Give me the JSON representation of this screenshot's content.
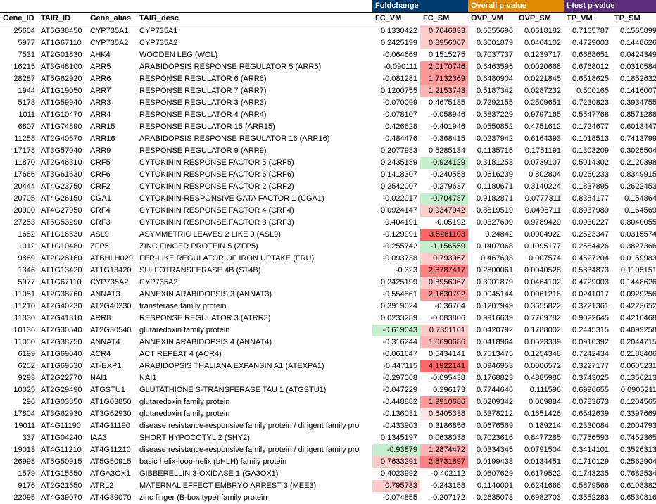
{
  "group_headers": {
    "fc": {
      "label": "Foldchange",
      "bg": "#003b6f"
    },
    "ovp": {
      "label": "Overall p-value",
      "bg": "#e08a00"
    },
    "tp": {
      "label": "t-test p-value",
      "bg": "#5a2d7a"
    }
  },
  "columns": {
    "gene_id": "Gene_ID",
    "tair_id": "TAIR_ID",
    "gene_alias": "Gene_alias",
    "tair_desc": "TAIR_desc",
    "fc_vm": "FC_VM",
    "fc_sm": "FC_SM",
    "ovp_vm": "OVP_VM",
    "ovp_sm": "OVP_SM",
    "tp_vm": "TP_VM",
    "tp_sm": "TP_SM"
  },
  "rows": [
    {
      "gene_id": "25604",
      "tair_id": "AT5G38450",
      "alias": "CYP735A1",
      "desc": "CYP735A1",
      "fc_vm": "0.1330422",
      "fc_sm": "0.7646833",
      "fc_sm_hl": "hl-red2",
      "ovp_vm": "0.6555696",
      "ovp_sm": "0.0618182",
      "tp_vm": "0.7165787",
      "tp_sm": "0.1565899"
    },
    {
      "gene_id": "5977",
      "tair_id": "AT1G67110",
      "alias": "CYP735A2",
      "desc": "CYP735A2",
      "fc_vm": "0.2425199",
      "fc_sm": "0.8956067",
      "fc_sm_hl": "hl-red2",
      "ovp_vm": "0.3001879",
      "ovp_sm": "0.0464102",
      "tp_vm": "0.4729003",
      "tp_sm": "0.1448626"
    },
    {
      "gene_id": "7531",
      "tair_id": "AT2G01830",
      "alias": "AHK4",
      "desc": "WOODEN LEG (WOL)",
      "fc_vm": "-0.064669",
      "fc_sm": "0.1515275",
      "ovp_vm": "0.7037737",
      "ovp_sm": "0.1239717",
      "tp_vm": "0.6688651",
      "tp_sm": "0.0424349"
    },
    {
      "gene_id": "16215",
      "tair_id": "AT3G48100",
      "alias": "ARR5",
      "desc": "ARABIDOPSIS RESPONSE REGULATOR 5 (ARR5)",
      "fc_vm": "-0.090111",
      "fc_sm": "2.0170746",
      "fc_sm_hl": "hl-red4",
      "ovp_vm": "0.6463595",
      "ovp_sm": "0.0020668",
      "tp_vm": "0.6768012",
      "tp_sm": "0.0310584"
    },
    {
      "gene_id": "28287",
      "tair_id": "AT5G62920",
      "alias": "ARR6",
      "desc": "RESPONSE REGULATOR 6 (ARR6)",
      "fc_vm": "-0.081281",
      "fc_sm": "1.7132369",
      "fc_sm_hl": "hl-red4",
      "ovp_vm": "0.6480904",
      "ovp_sm": "0.0221845",
      "tp_vm": "0.6518625",
      "tp_sm": "0.1852632"
    },
    {
      "gene_id": "1944",
      "tair_id": "AT1G19050",
      "alias": "ARR7",
      "desc": "RESPONSE REGULATOR 7 (ARR7)",
      "fc_vm": "0.1200755",
      "fc_sm": "1.2153743",
      "fc_sm_hl": "hl-red3",
      "ovp_vm": "0.5187342",
      "ovp_sm": "0.0287232",
      "tp_vm": "0.500165",
      "tp_sm": "0.1416007"
    },
    {
      "gene_id": "5178",
      "tair_id": "AT1G59940",
      "alias": "ARR3",
      "desc": "RESPONSE REGULATOR 3 (ARR3)",
      "fc_vm": "-0.070099",
      "fc_sm": "0.4675185",
      "ovp_vm": "0.7292155",
      "ovp_sm": "0.2509651",
      "tp_vm": "0.7230823",
      "tp_sm": "0.3934755"
    },
    {
      "gene_id": "1011",
      "tair_id": "AT1G10470",
      "alias": "ARR4",
      "desc": "RESPONSE REGULATOR 4 (ARR4)",
      "fc_vm": "-0.078107",
      "fc_sm": "-0.058946",
      "ovp_vm": "0.5837229",
      "ovp_sm": "0.9797165",
      "tp_vm": "0.5547768",
      "tp_sm": "0.8571288"
    },
    {
      "gene_id": "6807",
      "tair_id": "AT1G74890",
      "alias": "ARR15",
      "desc": "RESPONSE REGULATOR 15 (ARR15)",
      "fc_vm": "0.426628",
      "fc_sm": "-0.401946",
      "ovp_vm": "0.0550852",
      "ovp_sm": "0.4751612",
      "tp_vm": "0.1724677",
      "tp_sm": "0.6013447"
    },
    {
      "gene_id": "11258",
      "tair_id": "AT2G40670",
      "alias": "ARR16",
      "desc": "ARABIDOPSIS RESPONSE REGULATOR 16 (ARR16)",
      "fc_vm": "-0.484476",
      "fc_sm": "-0.368415",
      "ovp_vm": "0.0237942",
      "ovp_sm": "0.6164393",
      "tp_vm": "0.1018513",
      "tp_sm": "0.7413799"
    },
    {
      "gene_id": "17178",
      "tair_id": "AT3G57040",
      "alias": "ARR9",
      "desc": "RESPONSE REGULATOR 9 (ARR9)",
      "fc_vm": "0.2077983",
      "fc_sm": "0.5285134",
      "ovp_vm": "0.1135715",
      "ovp_sm": "0.1751191",
      "tp_vm": "0.1303209",
      "tp_sm": "0.3025504"
    },
    {
      "gene_id": "11870",
      "tair_id": "AT2G46310",
      "alias": "CRF5",
      "desc": "CYTOKININ RESPONSE FACTOR 5 (CRF5)",
      "fc_vm": "0.2435189",
      "fc_sm": "-0.924129",
      "fc_sm_hl": "hl-green",
      "ovp_vm": "0.3181253",
      "ovp_sm": "0.0739107",
      "tp_vm": "0.5014302",
      "tp_sm": "0.2120398"
    },
    {
      "gene_id": "17666",
      "tair_id": "AT3G61630",
      "alias": "CRF6",
      "desc": "CYTOKININ RESPONSE FACTOR 6 (CRF6)",
      "fc_vm": "0.1418307",
      "fc_sm": "-0.240558",
      "ovp_vm": "0.0616239",
      "ovp_sm": "0.802804",
      "tp_vm": "0.0260233",
      "tp_sm": "0.8349915"
    },
    {
      "gene_id": "20444",
      "tair_id": "AT4G23750",
      "alias": "CRF2",
      "desc": "CYTOKININ RESPONSE FACTOR 2 (CRF2)",
      "fc_vm": "0.2542007",
      "fc_sm": "-0.279637",
      "ovp_vm": "0.1180671",
      "ovp_sm": "0.3140224",
      "tp_vm": "0.1837895",
      "tp_sm": "0.2622453"
    },
    {
      "gene_id": "20705",
      "tair_id": "AT4G26150",
      "alias": "CGA1",
      "desc": "CYTOKININ-RESPONSIVE GATA FACTOR 1 (CGA1)",
      "fc_vm": "-0.022017",
      "fc_sm": "-0.704787",
      "fc_sm_hl": "hl-green",
      "ovp_vm": "0.9182871",
      "ovp_sm": "0.0777311",
      "tp_vm": "0.8354177",
      "tp_sm": "0.154864"
    },
    {
      "gene_id": "20900",
      "tair_id": "AT4G27950",
      "alias": "CRF4",
      "desc": "CYTOKININ RESPONSE FACTOR 4 (CRF4)",
      "fc_vm": "0.0924147",
      "fc_sm": "0.9347942",
      "fc_sm_hl": "hl-red2",
      "ovp_vm": "0.8819519",
      "ovp_sm": "0.0498711",
      "tp_vm": "0.8937989",
      "tp_sm": "0.164569"
    },
    {
      "gene_id": "27253",
      "tair_id": "AT5G53290",
      "alias": "CRF3",
      "desc": "CYTOKININ RESPONSE FACTOR 3 (CRF3)",
      "fc_vm": "0.404191",
      "fc_sm": "-0.05192",
      "ovp_vm": "0.0327699",
      "ovp_sm": "0.9789429",
      "tp_vm": "0.0930227",
      "tp_sm": "0.8040055"
    },
    {
      "gene_id": "1682",
      "tair_id": "AT1G16530",
      "alias": "ASL9",
      "desc": "ASYMMETRIC LEAVES 2 LIKE 9 (ASL9)",
      "fc_vm": "-0.129991",
      "fc_sm": "3.5281103",
      "fc_sm_hl": "hl-red6",
      "ovp_vm": "0.24842",
      "ovp_sm": "0.0004922",
      "tp_vm": "0.2523347",
      "tp_sm": "0.0315574"
    },
    {
      "gene_id": "1012",
      "tair_id": "AT1G10480",
      "alias": "ZFP5",
      "desc": "ZINC FINGER PROTEIN 5 (ZFP5)",
      "fc_vm": "-0.255742",
      "fc_sm": "-1.156559",
      "fc_sm_hl": "hl-green",
      "ovp_vm": "0.1407068",
      "ovp_sm": "0.1095177",
      "tp_vm": "0.2584426",
      "tp_sm": "0.3827366"
    },
    {
      "gene_id": "9889",
      "tair_id": "AT2G28160",
      "alias": "ATBHLH029",
      "desc": "FER-LIKE REGULATOR OF IRON UPTAKE (FRU)",
      "fc_vm": "-0.093738",
      "fc_sm": "0.793967",
      "fc_sm_hl": "hl-red2",
      "ovp_vm": "0.467693",
      "ovp_sm": "0.007574",
      "tp_vm": "0.4527204",
      "tp_sm": "0.0159983"
    },
    {
      "gene_id": "1346",
      "tair_id": "AT1G13420",
      "alias": "AT1G13420",
      "desc": "SULFOTRANSFERASE 4B (ST4B)",
      "fc_vm": "-0.323",
      "fc_sm": "2.8787417",
      "fc_sm_hl": "hl-red5",
      "ovp_vm": "0.2800061",
      "ovp_sm": "0.0040528",
      "tp_vm": "0.5834873",
      "tp_sm": "0.1105151"
    },
    {
      "gene_id": "5977",
      "tair_id": "AT1G67110",
      "alias": "CYP735A2",
      "desc": "CYP735A2",
      "fc_vm": "0.2425199",
      "fc_sm": "0.8956067",
      "fc_sm_hl": "hl-red2",
      "ovp_vm": "0.3001879",
      "ovp_sm": "0.0464102",
      "tp_vm": "0.4729003",
      "tp_sm": "0.1448626"
    },
    {
      "gene_id": "11051",
      "tair_id": "AT2G38760",
      "alias": "ANNAT3",
      "desc": "ANNEXIN ARABIDOPSIS 3 (ANNAT3)",
      "fc_vm": "-0.554861",
      "fc_sm": "2.1630792",
      "fc_sm_hl": "hl-red4",
      "ovp_vm": "0.0045144",
      "ovp_sm": "0.0061216",
      "tp_vm": "0.0241017",
      "tp_sm": "0.0929256"
    },
    {
      "gene_id": "11210",
      "tair_id": "AT2G40230",
      "alias": "AT2G40230",
      "desc": "transferase family protein",
      "fc_vm": "0.3919024",
      "fc_sm": "-0.36704",
      "ovp_vm": "0.1207949",
      "ovp_sm": "0.3655822",
      "tp_vm": "0.3221361",
      "tp_sm": "0.4223652"
    },
    {
      "gene_id": "11330",
      "tair_id": "AT2G41310",
      "alias": "ARR8",
      "desc": "RESPONSE REGULATOR 3 (ATRR3)",
      "fc_vm": "0.0233289",
      "fc_sm": "-0.083806",
      "ovp_vm": "0.9916639",
      "ovp_sm": "0.7769782",
      "tp_vm": "0.9022645",
      "tp_sm": "0.4210468"
    },
    {
      "gene_id": "10136",
      "tair_id": "AT2G30540",
      "alias": "AT2G30540",
      "desc": "glutaredoxin family protein",
      "fc_vm": "-0.619043",
      "fc_vm_hl": "hl-green",
      "fc_sm": "0.7351161",
      "fc_sm_hl": "hl-red2",
      "ovp_vm": "0.0420792",
      "ovp_sm": "0.1788002",
      "tp_vm": "0.2445315",
      "tp_sm": "0.4099258"
    },
    {
      "gene_id": "11050",
      "tair_id": "AT2G38750",
      "alias": "ANNAT4",
      "desc": "ANNEXIN ARABIDOPSIS 4 (ANNAT4)",
      "fc_vm": "-0.316244",
      "fc_sm": "1.0690686",
      "fc_sm_hl": "hl-red3",
      "ovp_vm": "0.0418964",
      "ovp_sm": "0.0523339",
      "tp_vm": "0.0916392",
      "tp_sm": "0.2044715"
    },
    {
      "gene_id": "6199",
      "tair_id": "AT1G69040",
      "alias": "ACR4",
      "desc": "ACT REPEAT 4 (ACR4)",
      "fc_vm": "-0.061647",
      "fc_sm": "0.5434141",
      "ovp_vm": "0.7513475",
      "ovp_sm": "0.1254348",
      "tp_vm": "0.7242434",
      "tp_sm": "0.2188406"
    },
    {
      "gene_id": "6252",
      "tair_id": "AT1G69530",
      "alias": "AT-EXP1",
      "desc": "ARABIDOPSIS THALIANA EXPANSIN A1 (ATEXPA1)",
      "fc_vm": "-0.447115",
      "fc_sm": "4.1922141",
      "fc_sm_hl": "hl-red6",
      "ovp_vm": "0.0946953",
      "ovp_sm": "0.0006572",
      "tp_vm": "0.3227177",
      "tp_sm": "0.0605231"
    },
    {
      "gene_id": "9293",
      "tair_id": "AT2G22770",
      "alias": "NAI1",
      "desc": "NAI1",
      "fc_vm": "-0.297068",
      "fc_sm": "-0.095438",
      "ovp_vm": "0.1768823",
      "ovp_sm": "0.4885986",
      "tp_vm": "0.3743025",
      "tp_sm": "0.1356213"
    },
    {
      "gene_id": "10025",
      "tair_id": "AT2G29490",
      "alias": "ATGSTU1",
      "desc": "GLUTATHIONE S-TRANSFERASE TAU 1 (ATGSTU1)",
      "fc_vm": "-0.047229",
      "fc_sm": "0.296173",
      "ovp_vm": "0.7744646",
      "ovp_sm": "0.111596",
      "tp_vm": "0.6996655",
      "tp_sm": "0.0905211"
    },
    {
      "gene_id": "296",
      "tair_id": "AT1G03850",
      "alias": "AT1G03850",
      "desc": "glutaredoxin family protein",
      "fc_vm": "-0.448882",
      "fc_sm": "1.9910686",
      "fc_sm_hl": "hl-red4",
      "ovp_vm": "0.0209342",
      "ovp_sm": "0.009884",
      "tp_vm": "0.0783673",
      "tp_sm": "0.1204565"
    },
    {
      "gene_id": "17804",
      "tair_id": "AT3G62930",
      "alias": "AT3G62930",
      "desc": "glutaredoxin family protein",
      "fc_vm": "-0.136031",
      "fc_sm": "0.6405338",
      "fc_sm_hl": "hl-red1",
      "ovp_vm": "0.5378212",
      "ovp_sm": "0.1651426",
      "tp_vm": "0.6542639",
      "tp_sm": "0.3397669"
    },
    {
      "gene_id": "19011",
      "tair_id": "AT4G11190",
      "alias": "AT4G11190",
      "desc": "disease resistance-responsive family protein / dirigent family pro",
      "fc_vm": "-0.433903",
      "fc_sm": "0.3186856",
      "ovp_vm": "0.0676569",
      "ovp_sm": "0.189214",
      "tp_vm": "0.2330084",
      "tp_sm": "0.2004793"
    },
    {
      "gene_id": "337",
      "tair_id": "AT1G04240",
      "alias": "IAA3",
      "desc": "SHORT HYPOCOTYL 2 (SHY2)",
      "fc_vm": "0.1345197",
      "fc_sm": "0.0638038",
      "ovp_vm": "0.7023616",
      "ovp_sm": "0.8477285",
      "tp_vm": "0.7756593",
      "tp_sm": "0.7452365"
    },
    {
      "gene_id": "19013",
      "tair_id": "AT4G11210",
      "alias": "AT4G11210",
      "desc": "disease resistance-responsive family protein / dirigent family pro",
      "fc_vm": "-0.93879",
      "fc_vm_hl": "hl-green",
      "fc_sm": "1.2874472",
      "fc_sm_hl": "hl-red3",
      "ovp_vm": "0.0334345",
      "ovp_sm": "0.0791504",
      "tp_vm": "0.3414101",
      "tp_sm": "0.3526313"
    },
    {
      "gene_id": "26998",
      "tair_id": "AT5G50915",
      "alias": "AT5G50915",
      "desc": "basic helix-loop-helix (bHLH) family protein",
      "fc_vm": "0.7633291",
      "fc_vm_hl": "hl-red2",
      "fc_sm": "2.8731897",
      "fc_sm_hl": "hl-red5",
      "ovp_vm": "0.0199433",
      "ovp_sm": "0.0134451",
      "tp_vm": "0.1710129",
      "tp_sm": "0.2562904"
    },
    {
      "gene_id": "1579",
      "tair_id": "AT1G15550",
      "alias": "ATGA3OX1",
      "desc": "GIBBERELLIN 3-OXIDASE 1 (GA3OX1)",
      "fc_vm": "0.4023992",
      "fc_sm": "-0.402112",
      "ovp_vm": "0.0607629",
      "ovp_sm": "0.6179522",
      "tp_vm": "0.1743235",
      "tp_sm": "0.7682534"
    },
    {
      "gene_id": "9176",
      "tair_id": "AT2G21650",
      "alias": "ATRL2",
      "desc": "MATERNAL EFFECT EMBRYO ARREST 3 (MEE3)",
      "fc_vm": "0.795733",
      "fc_vm_hl": "hl-red2",
      "fc_sm": "-0.243158",
      "ovp_vm": "0.1140001",
      "ovp_sm": "0.6241666",
      "tp_vm": "0.5879566",
      "tp_sm": "0.6108382"
    },
    {
      "gene_id": "22095",
      "tair_id": "AT4G39070",
      "alias": "AT4G39070",
      "desc": "zinc finger (B-box type) family protein",
      "fc_vm": "-0.074855",
      "fc_sm": "-0.207172",
      "ovp_vm": "0.2635073",
      "ovp_sm": "0.6982703",
      "tp_vm": "0.3552283",
      "tp_sm": "0.6530816"
    }
  ]
}
